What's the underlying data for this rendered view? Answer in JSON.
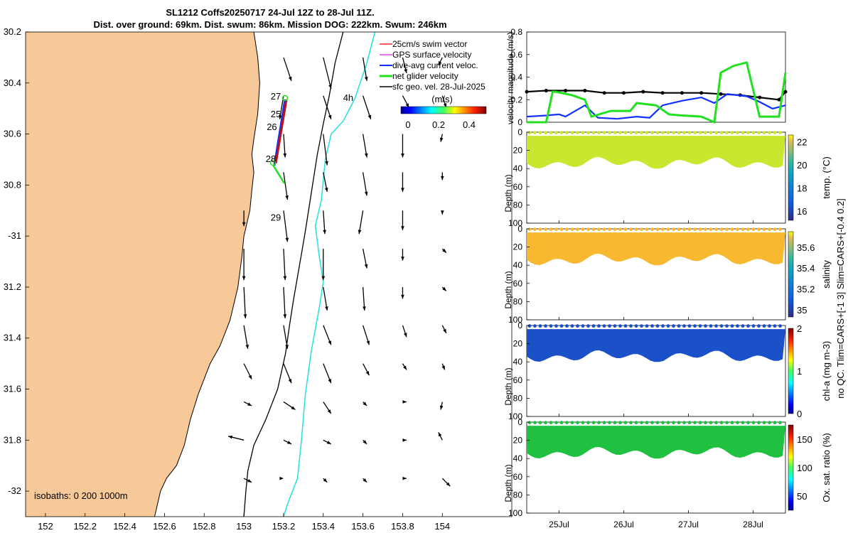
{
  "title_line1": "SL1212 Coffs20250717 24-Jul 12Z to 28-Jul 11Z.",
  "title_line2": "Dist. over ground: 69km. Dist. swum: 86km. Mission DOG: 222km. Swum: 246km",
  "colors": {
    "land": "#f8c998",
    "coast": "#000000",
    "isobath200": "#000000",
    "isobath1000": "#22e0e0",
    "swim": "#ff2020",
    "gps": "#e040e0",
    "dive": "#1030ff",
    "net": "#20e020",
    "geo": "#000000"
  },
  "chart_data": [
    {
      "type": "map",
      "title": "SL1212 Coffs20250717 24-Jul 12Z to 28-Jul 11Z.",
      "xlim": [
        151.9,
        154.35
      ],
      "ylim": [
        -32.1,
        -30.2
      ],
      "xticks": [
        152,
        152.2,
        152.4,
        152.6,
        152.8,
        153,
        153.2,
        153.4,
        153.6,
        153.8,
        154
      ],
      "xtick_labels": [
        "152",
        "152.2",
        "152.4",
        "152.6",
        "152.8",
        "153",
        "153.2",
        "153.4",
        "153.6",
        "153.8",
        "154"
      ],
      "yticks": [
        -30.2,
        -30.4,
        -30.6,
        -30.8,
        -31,
        -31.2,
        -31.4,
        -31.6,
        -31.8,
        -32
      ],
      "ytick_labels": [
        "30.2",
        "30.4",
        "30.6",
        "30.8",
        "-31",
        "31.2",
        "31.4",
        "31.6",
        "31.8",
        "-32"
      ],
      "legend": [
        "25cm/s swim vector",
        "GPS surface velocity",
        "dive-avg current veloc.",
        "net glider velocity",
        "sfc geo. vel. 28-Jul-2025"
      ],
      "isobath_label": "isobaths: 0   200  1000m",
      "colorbar": {
        "label": "(m/s)",
        "ticks": [
          "0",
          "0.2",
          "0.4"
        ],
        "range": [
          0,
          0.5
        ]
      },
      "track_day_labels": [
        {
          "text": "27",
          "lon": 153.135,
          "lat": -30.465
        },
        {
          "text": "25",
          "lon": 153.135,
          "lat": -30.535
        },
        {
          "text": "26",
          "lon": 153.115,
          "lat": -30.585
        },
        {
          "text": "28",
          "lon": 153.11,
          "lat": -30.71
        },
        {
          "text": "29",
          "lon": 153.135,
          "lat": -30.94
        },
        {
          "text": "4h",
          "lon": 153.5,
          "lat": -30.47
        }
      ],
      "coastline": [
        [
          152.55,
          -32.1
        ],
        [
          152.58,
          -32.0
        ],
        [
          152.61,
          -31.95
        ],
        [
          152.66,
          -31.9
        ],
        [
          152.7,
          -31.82
        ],
        [
          152.73,
          -31.72
        ],
        [
          152.77,
          -31.62
        ],
        [
          152.83,
          -31.5
        ],
        [
          152.88,
          -31.43
        ],
        [
          152.93,
          -31.33
        ],
        [
          152.97,
          -31.2
        ],
        [
          152.99,
          -31.08
        ],
        [
          153.0,
          -31.0
        ],
        [
          153.03,
          -30.9
        ],
        [
          153.04,
          -30.82
        ],
        [
          153.05,
          -30.75
        ],
        [
          153.04,
          -30.68
        ],
        [
          153.05,
          -30.62
        ],
        [
          153.07,
          -30.52
        ],
        [
          153.08,
          -30.4
        ],
        [
          153.07,
          -30.3
        ],
        [
          153.05,
          -30.2
        ]
      ],
      "isobath_200": [
        [
          153.5,
          -30.2
        ],
        [
          153.46,
          -30.32
        ],
        [
          153.43,
          -30.45
        ],
        [
          153.4,
          -30.56
        ],
        [
          153.37,
          -30.68
        ],
        [
          153.35,
          -30.78
        ],
        [
          153.33,
          -30.88
        ],
        [
          153.31,
          -30.98
        ],
        [
          153.29,
          -31.07
        ],
        [
          153.27,
          -31.16
        ],
        [
          153.25,
          -31.25
        ],
        [
          153.23,
          -31.35
        ],
        [
          153.21,
          -31.46
        ],
        [
          153.17,
          -31.6
        ],
        [
          153.11,
          -31.72
        ],
        [
          153.05,
          -31.82
        ],
        [
          153.02,
          -31.92
        ],
        [
          153.01,
          -32.0
        ],
        [
          153.0,
          -32.1
        ]
      ],
      "isobath_1000": [
        [
          153.66,
          -30.2
        ],
        [
          153.62,
          -30.32
        ],
        [
          153.56,
          -30.46
        ],
        [
          153.5,
          -30.55
        ],
        [
          153.44,
          -30.6
        ],
        [
          153.41,
          -30.7
        ],
        [
          153.39,
          -30.86
        ],
        [
          153.36,
          -30.96
        ],
        [
          153.38,
          -31.08
        ],
        [
          153.4,
          -31.18
        ],
        [
          153.38,
          -31.28
        ],
        [
          153.34,
          -31.45
        ],
        [
          153.31,
          -31.62
        ],
        [
          153.29,
          -31.8
        ],
        [
          153.27,
          -31.95
        ],
        [
          153.22,
          -32.05
        ],
        [
          153.2,
          -32.1
        ]
      ],
      "geo_vectors_uv": [
        [
          0,
          -0.1
        ],
        [
          0.1,
          -0.3
        ],
        [
          0.1,
          -0.4
        ],
        [
          0.05,
          -0.3
        ],
        [
          0.05,
          -0.2
        ],
        [
          -0.05,
          -0.1
        ],
        [
          0,
          -0.28
        ],
        [
          -0.05,
          -0.3
        ],
        [
          0.1,
          -0.3
        ],
        [
          0.1,
          -0.3
        ],
        [
          0.08,
          -0.15
        ],
        [
          0.05,
          -0.15
        ],
        [
          0.05,
          -0.2
        ],
        [
          0.02,
          -0.3
        ],
        [
          0.05,
          -0.4
        ],
        [
          0.05,
          -0.3
        ],
        [
          0,
          -0.3
        ],
        [
          -0.02,
          -0.1
        ],
        [
          0.05,
          -0.3
        ],
        [
          0.05,
          -0.35
        ],
        [
          0.05,
          -0.25
        ],
        [
          0.05,
          -0.3
        ],
        [
          0,
          -0.25
        ],
        [
          0,
          -0.1
        ],
        [
          0,
          -0.2
        ],
        [
          0.05,
          -0.4
        ],
        [
          0.02,
          -0.3
        ],
        [
          -0.05,
          -0.3
        ],
        [
          0,
          -0.25
        ],
        [
          0,
          -0.05
        ],
        [
          0,
          -0.4
        ],
        [
          0.02,
          -0.4
        ],
        [
          0,
          -0.4
        ],
        [
          0.05,
          -0.25
        ],
        [
          0,
          -0.15
        ],
        [
          0.05,
          -0.05
        ],
        [
          0.02,
          -0.4
        ],
        [
          0.02,
          -0.4
        ],
        [
          0.05,
          -0.3
        ],
        [
          0.02,
          -0.3
        ],
        [
          0,
          -0.15
        ],
        [
          0.05,
          -0.05
        ],
        [
          0.05,
          -0.3
        ],
        [
          0.05,
          -0.3
        ],
        [
          0.1,
          -0.25
        ],
        [
          0.08,
          -0.25
        ],
        [
          0.05,
          -0.15
        ],
        [
          0.05,
          -0.1
        ],
        [
          0.1,
          -0.2
        ],
        [
          0.1,
          -0.25
        ],
        [
          0.1,
          -0.25
        ],
        [
          0.08,
          -0.15
        ],
        [
          0.05,
          -0.08
        ],
        [
          0.03,
          -0.08
        ],
        [
          0.1,
          -0.05
        ],
        [
          0.15,
          -0.1
        ],
        [
          0.1,
          -0.15
        ],
        [
          0.05,
          -0.05
        ],
        [
          0.05,
          0
        ],
        [
          -0.02,
          -0.1
        ],
        [
          -0.2,
          0.05
        ],
        [
          0.1,
          -0.05
        ],
        [
          0.1,
          -0.05
        ],
        [
          0.05,
          -0.05
        ],
        [
          0.05,
          0
        ],
        [
          -0.05,
          0.1
        ],
        [
          0.1,
          -0.05
        ],
        [
          0,
          0
        ],
        [
          0.05,
          -0.05
        ],
        [
          0.05,
          -0.05
        ],
        [
          0.05,
          0
        ],
        [
          0.1,
          -0.1
        ]
      ]
    },
    {
      "type": "line",
      "ylabel": "velocity magnitude (m/s)",
      "ylim": [
        0,
        0.8
      ],
      "yticks": [
        "0",
        "0.2",
        "0.4",
        "0.6",
        "0.8"
      ],
      "x_days": [
        "25Jul",
        "26Jul",
        "27Jul",
        "28Jul"
      ],
      "xlim_days": [
        0,
        4
      ],
      "series": [
        {
          "name": "sfc geo. vel.",
          "color": "#000000",
          "x": [
            0,
            0.3,
            0.6,
            0.9,
            1.2,
            1.5,
            1.8,
            2.1,
            2.4,
            2.7,
            3.0,
            3.3,
            3.6,
            3.9,
            4.0
          ],
          "y": [
            0.27,
            0.28,
            0.28,
            0.28,
            0.26,
            0.26,
            0.27,
            0.26,
            0.26,
            0.26,
            0.25,
            0.24,
            0.22,
            0.2,
            0.27
          ]
        },
        {
          "name": "dive-avg current",
          "color": "#1030ff",
          "x": [
            0,
            0.3,
            0.5,
            0.6,
            0.9,
            1.1,
            1.4,
            1.7,
            1.9,
            2.1,
            2.4,
            2.7,
            2.9,
            3.1,
            3.4,
            3.6,
            3.8,
            4.0
          ],
          "y": [
            0.05,
            0.06,
            0.07,
            0.05,
            0.15,
            0.04,
            0.03,
            0.05,
            0.04,
            0.15,
            0.19,
            0.22,
            0.17,
            0.25,
            0.23,
            0.18,
            0.12,
            0.15
          ]
        },
        {
          "name": "net glider velocity",
          "color": "#20e020",
          "x": [
            0,
            0.3,
            0.4,
            0.45,
            0.7,
            0.9,
            1.0,
            1.3,
            1.6,
            1.7,
            2.0,
            2.2,
            2.4,
            2.7,
            2.9,
            3.0,
            3.2,
            3.4,
            3.6,
            3.9,
            4.0
          ],
          "y": [
            0.0,
            0.0,
            0.27,
            0.27,
            0.24,
            0.2,
            0.05,
            0.1,
            0.1,
            0.17,
            0.15,
            0.07,
            0.06,
            0.05,
            0.0,
            0.44,
            0.5,
            0.53,
            0.05,
            0.05,
            0.44
          ]
        }
      ]
    },
    {
      "type": "heatmap",
      "ylabel": "Depth (m)",
      "cbar_label": "temp. (°C)",
      "yticks": [
        "0",
        "20",
        "40",
        "60",
        "80",
        "100"
      ],
      "cbar_ticks": [
        "16",
        "18",
        "20",
        "22"
      ],
      "clim": [
        15.2,
        22.6
      ],
      "value_color": "#c8e830"
    },
    {
      "type": "heatmap",
      "ylabel": "Depth (m)",
      "cbar_label": "salinity",
      "yticks": [
        "0",
        "20",
        "40",
        "60",
        "80",
        "100"
      ],
      "cbar_ticks": [
        "35",
        "35.2",
        "35.4",
        "35.6"
      ],
      "clim": [
        34.93,
        35.75
      ],
      "value_color": "#f8b830"
    },
    {
      "type": "heatmap",
      "ylabel": "Depth (m)",
      "cbar_label": "chl-a (mg m-3)",
      "yticks": [
        "0",
        "20",
        "40",
        "60",
        "80",
        "100"
      ],
      "cbar_ticks": [
        "0",
        "1",
        "2"
      ],
      "clim": [
        0,
        2
      ],
      "value_color": "#1a50c8"
    },
    {
      "type": "heatmap",
      "ylabel": "Depth (m)",
      "cbar_label": "Ox. sat. ratio (%)",
      "yticks": [
        "0",
        "20",
        "40",
        "60",
        "80",
        "100"
      ],
      "cbar_ticks": [
        "50",
        "100",
        "150"
      ],
      "clim": [
        25,
        175
      ],
      "value_color": "#20c040"
    }
  ],
  "side_note": "no QC. Tlim=CARS+[-1 3] Slim=CARS+[-0.4 0.2]"
}
